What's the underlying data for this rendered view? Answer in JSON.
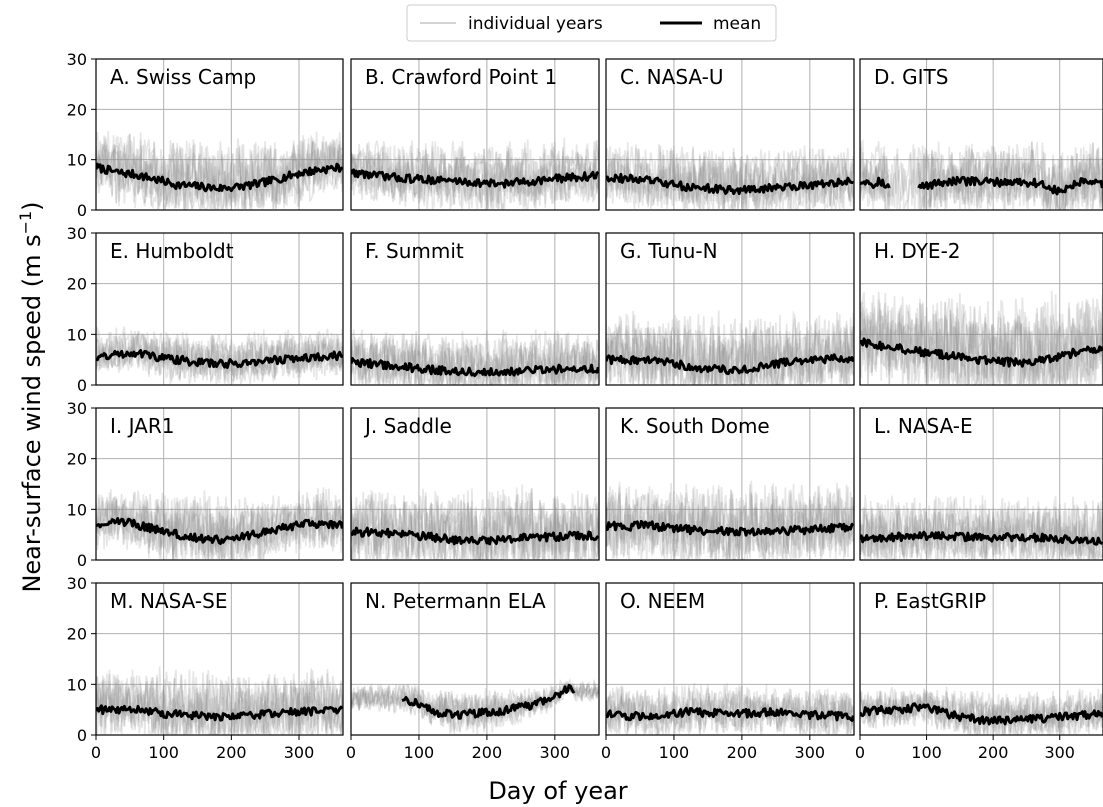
{
  "chart_data": {
    "type": "line",
    "xlabel": "Day of year",
    "ylabel": "Near-surface wind speed (m s",
    "ylabel_sup": "−1",
    "ylabel_close": ")",
    "xlim": [
      0,
      365
    ],
    "ylim": [
      0,
      30
    ],
    "xticks": [
      0,
      100,
      200,
      300
    ],
    "yticks": [
      0,
      10,
      20,
      30
    ],
    "grid": true,
    "legend": {
      "placement": "top-center",
      "entries": [
        {
          "label": "individual years",
          "color": "#d3d3d3"
        },
        {
          "label": "mean",
          "color": "#000000"
        }
      ]
    },
    "colors": {
      "individual": "#8c8c8c",
      "mean": "#000000",
      "grid": "#b0b0b0"
    },
    "panels": [
      {
        "title": "A. Swiss Camp",
        "mean_days": [
          0,
          30,
          60,
          90,
          120,
          150,
          180,
          210,
          240,
          270,
          300,
          330,
          365
        ],
        "mean_values": [
          8.5,
          7.5,
          7.0,
          6.0,
          5.0,
          4.7,
          4.3,
          4.6,
          5.2,
          6.2,
          7.3,
          8.0,
          8.5
        ],
        "spread_max": 20
      },
      {
        "title": "B. Crawford Point 1",
        "mean_days": [
          0,
          30,
          60,
          90,
          120,
          150,
          180,
          210,
          240,
          270,
          300,
          330,
          365
        ],
        "mean_values": [
          7.5,
          7.0,
          6.5,
          6.2,
          6.0,
          5.8,
          5.5,
          5.2,
          5.4,
          5.8,
          6.2,
          6.5,
          6.8
        ],
        "spread_max": 18
      },
      {
        "title": "C. NASA-U",
        "mean_days": [
          0,
          30,
          60,
          90,
          120,
          150,
          180,
          210,
          240,
          270,
          300,
          330,
          365
        ],
        "mean_values": [
          6.5,
          6.2,
          6.0,
          5.2,
          4.6,
          4.3,
          4.0,
          4.0,
          4.3,
          4.7,
          5.0,
          5.3,
          5.6
        ],
        "spread_max": 17
      },
      {
        "title": "D. GITS",
        "mean_days": [
          0,
          10,
          20,
          30,
          40,
          90,
          120,
          150,
          180,
          210,
          240,
          270,
          300,
          330,
          365
        ],
        "mean_values": [
          5.5,
          6.0,
          5.0,
          6.0,
          4.5,
          4.5,
          5.5,
          5.8,
          5.6,
          5.5,
          5.6,
          5.3,
          3.5,
          5.5,
          5.0
        ],
        "gap": [
          45,
          88
        ],
        "spread_max": 18
      },
      {
        "title": "E. Humboldt",
        "mean_days": [
          0,
          30,
          60,
          90,
          120,
          150,
          180,
          210,
          240,
          270,
          300,
          330,
          365
        ],
        "mean_values": [
          5.5,
          6.0,
          6.5,
          5.5,
          5.0,
          4.5,
          4.2,
          4.3,
          4.6,
          5.0,
          5.3,
          5.6,
          5.8
        ],
        "spread_max": 14
      },
      {
        "title": "F. Summit",
        "mean_days": [
          0,
          30,
          60,
          90,
          120,
          150,
          180,
          210,
          240,
          270,
          300,
          330,
          365
        ],
        "mean_values": [
          4.5,
          4.2,
          3.8,
          3.4,
          3.0,
          2.8,
          2.6,
          2.6,
          2.7,
          2.9,
          3.1,
          3.3,
          3.2
        ],
        "spread_max": 15
      },
      {
        "title": "G. Tunu-N",
        "mean_days": [
          0,
          30,
          60,
          90,
          120,
          150,
          180,
          210,
          240,
          270,
          300,
          330,
          365
        ],
        "mean_values": [
          5.0,
          5.0,
          4.8,
          4.4,
          3.8,
          3.2,
          3.0,
          3.2,
          3.8,
          4.6,
          5.0,
          5.2,
          5.2
        ],
        "spread_max": 20
      },
      {
        "title": "H. DYE-2",
        "mean_days": [
          0,
          30,
          60,
          90,
          120,
          150,
          180,
          210,
          240,
          270,
          300,
          330,
          365
        ],
        "mean_values": [
          8.5,
          7.8,
          7.2,
          6.6,
          6.0,
          5.6,
          5.0,
          4.6,
          4.4,
          4.8,
          5.6,
          6.6,
          7.5
        ],
        "spread_max": 25
      },
      {
        "title": "I. JAR1",
        "mean_days": [
          0,
          30,
          60,
          90,
          120,
          150,
          180,
          210,
          240,
          270,
          300,
          330,
          365
        ],
        "mean_values": [
          7.0,
          7.8,
          7.0,
          6.0,
          5.0,
          4.3,
          4.0,
          4.3,
          5.2,
          6.2,
          7.0,
          7.2,
          7.0
        ],
        "spread_max": 18
      },
      {
        "title": "J. Saddle",
        "mean_days": [
          0,
          30,
          60,
          90,
          120,
          150,
          180,
          210,
          240,
          270,
          300,
          330,
          365
        ],
        "mean_values": [
          5.5,
          5.5,
          5.2,
          4.8,
          4.5,
          4.0,
          3.8,
          3.9,
          4.2,
          4.4,
          4.6,
          4.8,
          4.8
        ],
        "spread_max": 20
      },
      {
        "title": "K. South Dome",
        "mean_days": [
          0,
          30,
          60,
          90,
          120,
          150,
          180,
          210,
          240,
          270,
          300,
          330,
          365
        ],
        "mean_values": [
          6.8,
          6.5,
          7.0,
          6.3,
          6.0,
          5.8,
          5.6,
          5.6,
          5.6,
          5.8,
          6.0,
          6.3,
          6.5
        ],
        "spread_max": 21
      },
      {
        "title": "L. NASA-E",
        "mean_days": [
          0,
          30,
          60,
          90,
          120,
          150,
          180,
          210,
          240,
          270,
          300,
          330,
          365
        ],
        "mean_values": [
          4.2,
          4.5,
          4.6,
          4.8,
          4.6,
          4.6,
          4.4,
          4.4,
          4.6,
          4.4,
          4.2,
          4.0,
          3.5
        ],
        "spread_max": 17
      },
      {
        "title": "M. NASA-SE",
        "mean_days": [
          0,
          30,
          60,
          90,
          120,
          150,
          180,
          210,
          240,
          270,
          300,
          330,
          365
        ],
        "mean_values": [
          5.0,
          5.0,
          5.2,
          4.4,
          4.0,
          3.8,
          3.6,
          3.7,
          4.0,
          4.4,
          4.6,
          4.8,
          4.8
        ],
        "spread_max": 18
      },
      {
        "title": "N. Petermann ELA",
        "mean_days": [
          75,
          95,
          110,
          130,
          150,
          180,
          210,
          240,
          270,
          300,
          320,
          330
        ],
        "mean_values": [
          7.0,
          6.5,
          5.5,
          4.2,
          4.0,
          4.2,
          4.5,
          5.2,
          6.0,
          7.5,
          9.5,
          8.5
        ],
        "spread_max": 12,
        "spread_start": 0
      },
      {
        "title": "O. NEEM",
        "mean_days": [
          0,
          30,
          60,
          90,
          120,
          150,
          180,
          210,
          240,
          270,
          300,
          330,
          365
        ],
        "mean_values": [
          4.0,
          3.8,
          3.6,
          4.0,
          4.5,
          4.4,
          4.2,
          4.3,
          4.5,
          4.3,
          4.0,
          3.8,
          3.6
        ],
        "spread_max": 13
      },
      {
        "title": "P. EastGRIP",
        "mean_days": [
          0,
          30,
          60,
          90,
          120,
          150,
          180,
          210,
          240,
          270,
          300,
          330,
          365
        ],
        "mean_values": [
          4.6,
          4.8,
          5.0,
          5.5,
          4.6,
          3.5,
          3.0,
          2.8,
          3.0,
          3.3,
          3.5,
          3.8,
          4.2
        ],
        "spread_max": 12
      }
    ]
  }
}
